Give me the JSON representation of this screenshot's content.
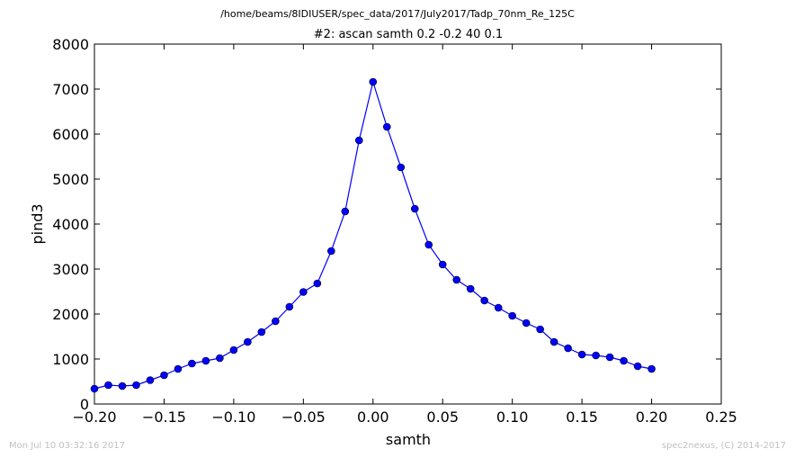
{
  "page": {
    "supertitle": "/home/beams/8IDIUSER/spec_data/2017/July2017/Tadp_70nm_Re_125C",
    "footer_left": "Mon Jul 10 03:32:16 2017",
    "footer_right": "spec2nexus, (C) 2014-2017"
  },
  "chart_data": {
    "type": "line",
    "title": "#2: ascan  samth 0.2 -0.2  40 0.1",
    "xlabel": "samth",
    "ylabel": "pind3",
    "xlim": [
      -0.2,
      0.25
    ],
    "ylim": [
      0,
      8000
    ],
    "xticks": [
      -0.2,
      -0.15,
      -0.1,
      -0.05,
      0.0,
      0.05,
      0.1,
      0.15,
      0.2,
      0.25
    ],
    "xtick_labels": [
      "−0.20",
      "−0.15",
      "−0.10",
      "−0.05",
      "0.00",
      "0.05",
      "0.10",
      "0.15",
      "0.20",
      "0.25"
    ],
    "yticks": [
      0,
      1000,
      2000,
      3000,
      4000,
      5000,
      6000,
      7000,
      8000
    ],
    "ytick_labels": [
      "0",
      "1000",
      "2000",
      "3000",
      "4000",
      "5000",
      "6000",
      "7000",
      "8000"
    ],
    "grid": false,
    "color": "#0000ff",
    "x": [
      -0.2,
      -0.19,
      -0.18,
      -0.17,
      -0.16,
      -0.15,
      -0.14,
      -0.13,
      -0.12,
      -0.11,
      -0.1,
      -0.09,
      -0.08,
      -0.07,
      -0.06,
      -0.05,
      -0.04,
      -0.03,
      -0.02,
      -0.01,
      0.0,
      0.01,
      0.02,
      0.03,
      0.04,
      0.05,
      0.06,
      0.07,
      0.08,
      0.09,
      0.1,
      0.11,
      0.12,
      0.13,
      0.14,
      0.15,
      0.16,
      0.17,
      0.18,
      0.19,
      0.2
    ],
    "y": [
      340,
      420,
      400,
      420,
      530,
      640,
      780,
      900,
      960,
      1020,
      1200,
      1380,
      1600,
      1840,
      2160,
      2490,
      2680,
      3400,
      4280,
      5860,
      7160,
      6160,
      5260,
      4340,
      3540,
      3100,
      2760,
      2560,
      2300,
      2140,
      1960,
      1800,
      1660,
      1380,
      1240,
      1100,
      1080,
      1040,
      960,
      840,
      780
    ]
  }
}
